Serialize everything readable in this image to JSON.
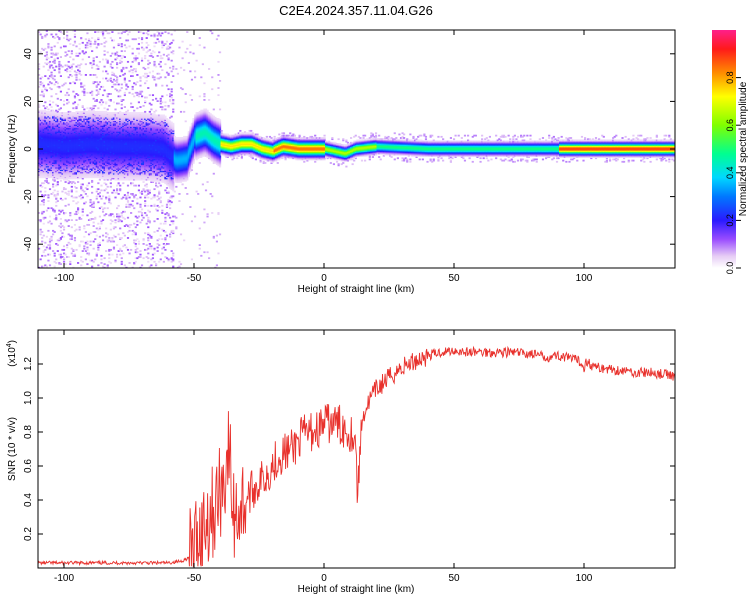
{
  "title": "C2E4.2024.357.11.04.G26",
  "chart_data": [
    {
      "type": "heatmap",
      "xlabel": "Height of straight line (km)",
      "ylabel": "Frequency (Hz)",
      "xlim": [
        -110,
        135
      ],
      "ylim": [
        -50,
        50
      ],
      "xticks": [
        -100,
        -50,
        0,
        50,
        100
      ],
      "yticks": [
        -40,
        -20,
        0,
        20,
        40
      ],
      "colorbar": {
        "label": "Normalized spectral amplitude",
        "range": [
          0,
          1
        ],
        "ticks": [
          0.0,
          0.2,
          0.4,
          0.6,
          0.8
        ]
      },
      "ridge_frequency_points": [
        [
          -108,
          2
        ],
        [
          -100,
          1
        ],
        [
          -90,
          2
        ],
        [
          -80,
          1
        ],
        [
          -70,
          1
        ],
        [
          -62,
          0
        ],
        [
          -57,
          -5
        ],
        [
          -53,
          -4
        ],
        [
          -50,
          5
        ],
        [
          -46,
          7
        ],
        [
          -43,
          4
        ],
        [
          -40,
          2
        ],
        [
          -36,
          1
        ],
        [
          -32,
          2
        ],
        [
          -28,
          2
        ],
        [
          -24,
          0
        ],
        [
          -20,
          -1
        ],
        [
          -16,
          1
        ],
        [
          -10,
          0
        ],
        [
          -5,
          0
        ],
        [
          0,
          0
        ],
        [
          4,
          -1
        ],
        [
          8,
          -2
        ],
        [
          12,
          0
        ],
        [
          20,
          1
        ],
        [
          40,
          0
        ],
        [
          60,
          0
        ],
        [
          80,
          0
        ],
        [
          100,
          0
        ],
        [
          120,
          0
        ],
        [
          135,
          0
        ]
      ]
    },
    {
      "type": "line",
      "xlabel": "Height of straight line (km)",
      "ylabel": "SNR (10 * v/v)",
      "multiplier_label": "(x10",
      "multiplier_exp": "4",
      "xlim": [
        -110,
        135
      ],
      "ylim": [
        0,
        1.4
      ],
      "xticks": [
        -100,
        -50,
        0,
        50,
        100
      ],
      "yticks": [
        0.2,
        0.4,
        0.6,
        0.8,
        1.0,
        1.2
      ],
      "series": [
        {
          "color": "#e8312c",
          "x": [
            -110,
            -100,
            -90,
            -80,
            -70,
            -60,
            -55,
            -52,
            -50,
            -48,
            -45,
            -42,
            -40,
            -38,
            -37,
            -36,
            -35,
            -33,
            -30,
            -28,
            -25,
            -22,
            -20,
            -18,
            -15,
            -12,
            -10,
            -8,
            -5,
            -2,
            0,
            3,
            5,
            8,
            10,
            12,
            13,
            14,
            15,
            18,
            20,
            25,
            30,
            35,
            40,
            45,
            50,
            55,
            60,
            70,
            80,
            85,
            90,
            95,
            98,
            100,
            101,
            103,
            105,
            110,
            115,
            120,
            125,
            130,
            135
          ],
          "y": [
            0.03,
            0.03,
            0.03,
            0.03,
            0.03,
            0.03,
            0.04,
            0.06,
            0.12,
            0.2,
            0.3,
            0.35,
            0.45,
            0.55,
            0.7,
            0.6,
            0.3,
            0.35,
            0.4,
            0.45,
            0.5,
            0.55,
            0.6,
            0.65,
            0.68,
            0.7,
            0.75,
            0.78,
            0.8,
            0.82,
            0.85,
            0.85,
            0.85,
            0.82,
            0.8,
            0.78,
            0.4,
            0.75,
            0.9,
            1.0,
            1.05,
            1.12,
            1.18,
            1.22,
            1.25,
            1.27,
            1.28,
            1.27,
            1.27,
            1.27,
            1.26,
            1.24,
            1.25,
            1.23,
            1.22,
            1.18,
            1.22,
            1.19,
            1.18,
            1.17,
            1.16,
            1.15,
            1.15,
            1.14,
            1.13
          ]
        }
      ]
    }
  ]
}
